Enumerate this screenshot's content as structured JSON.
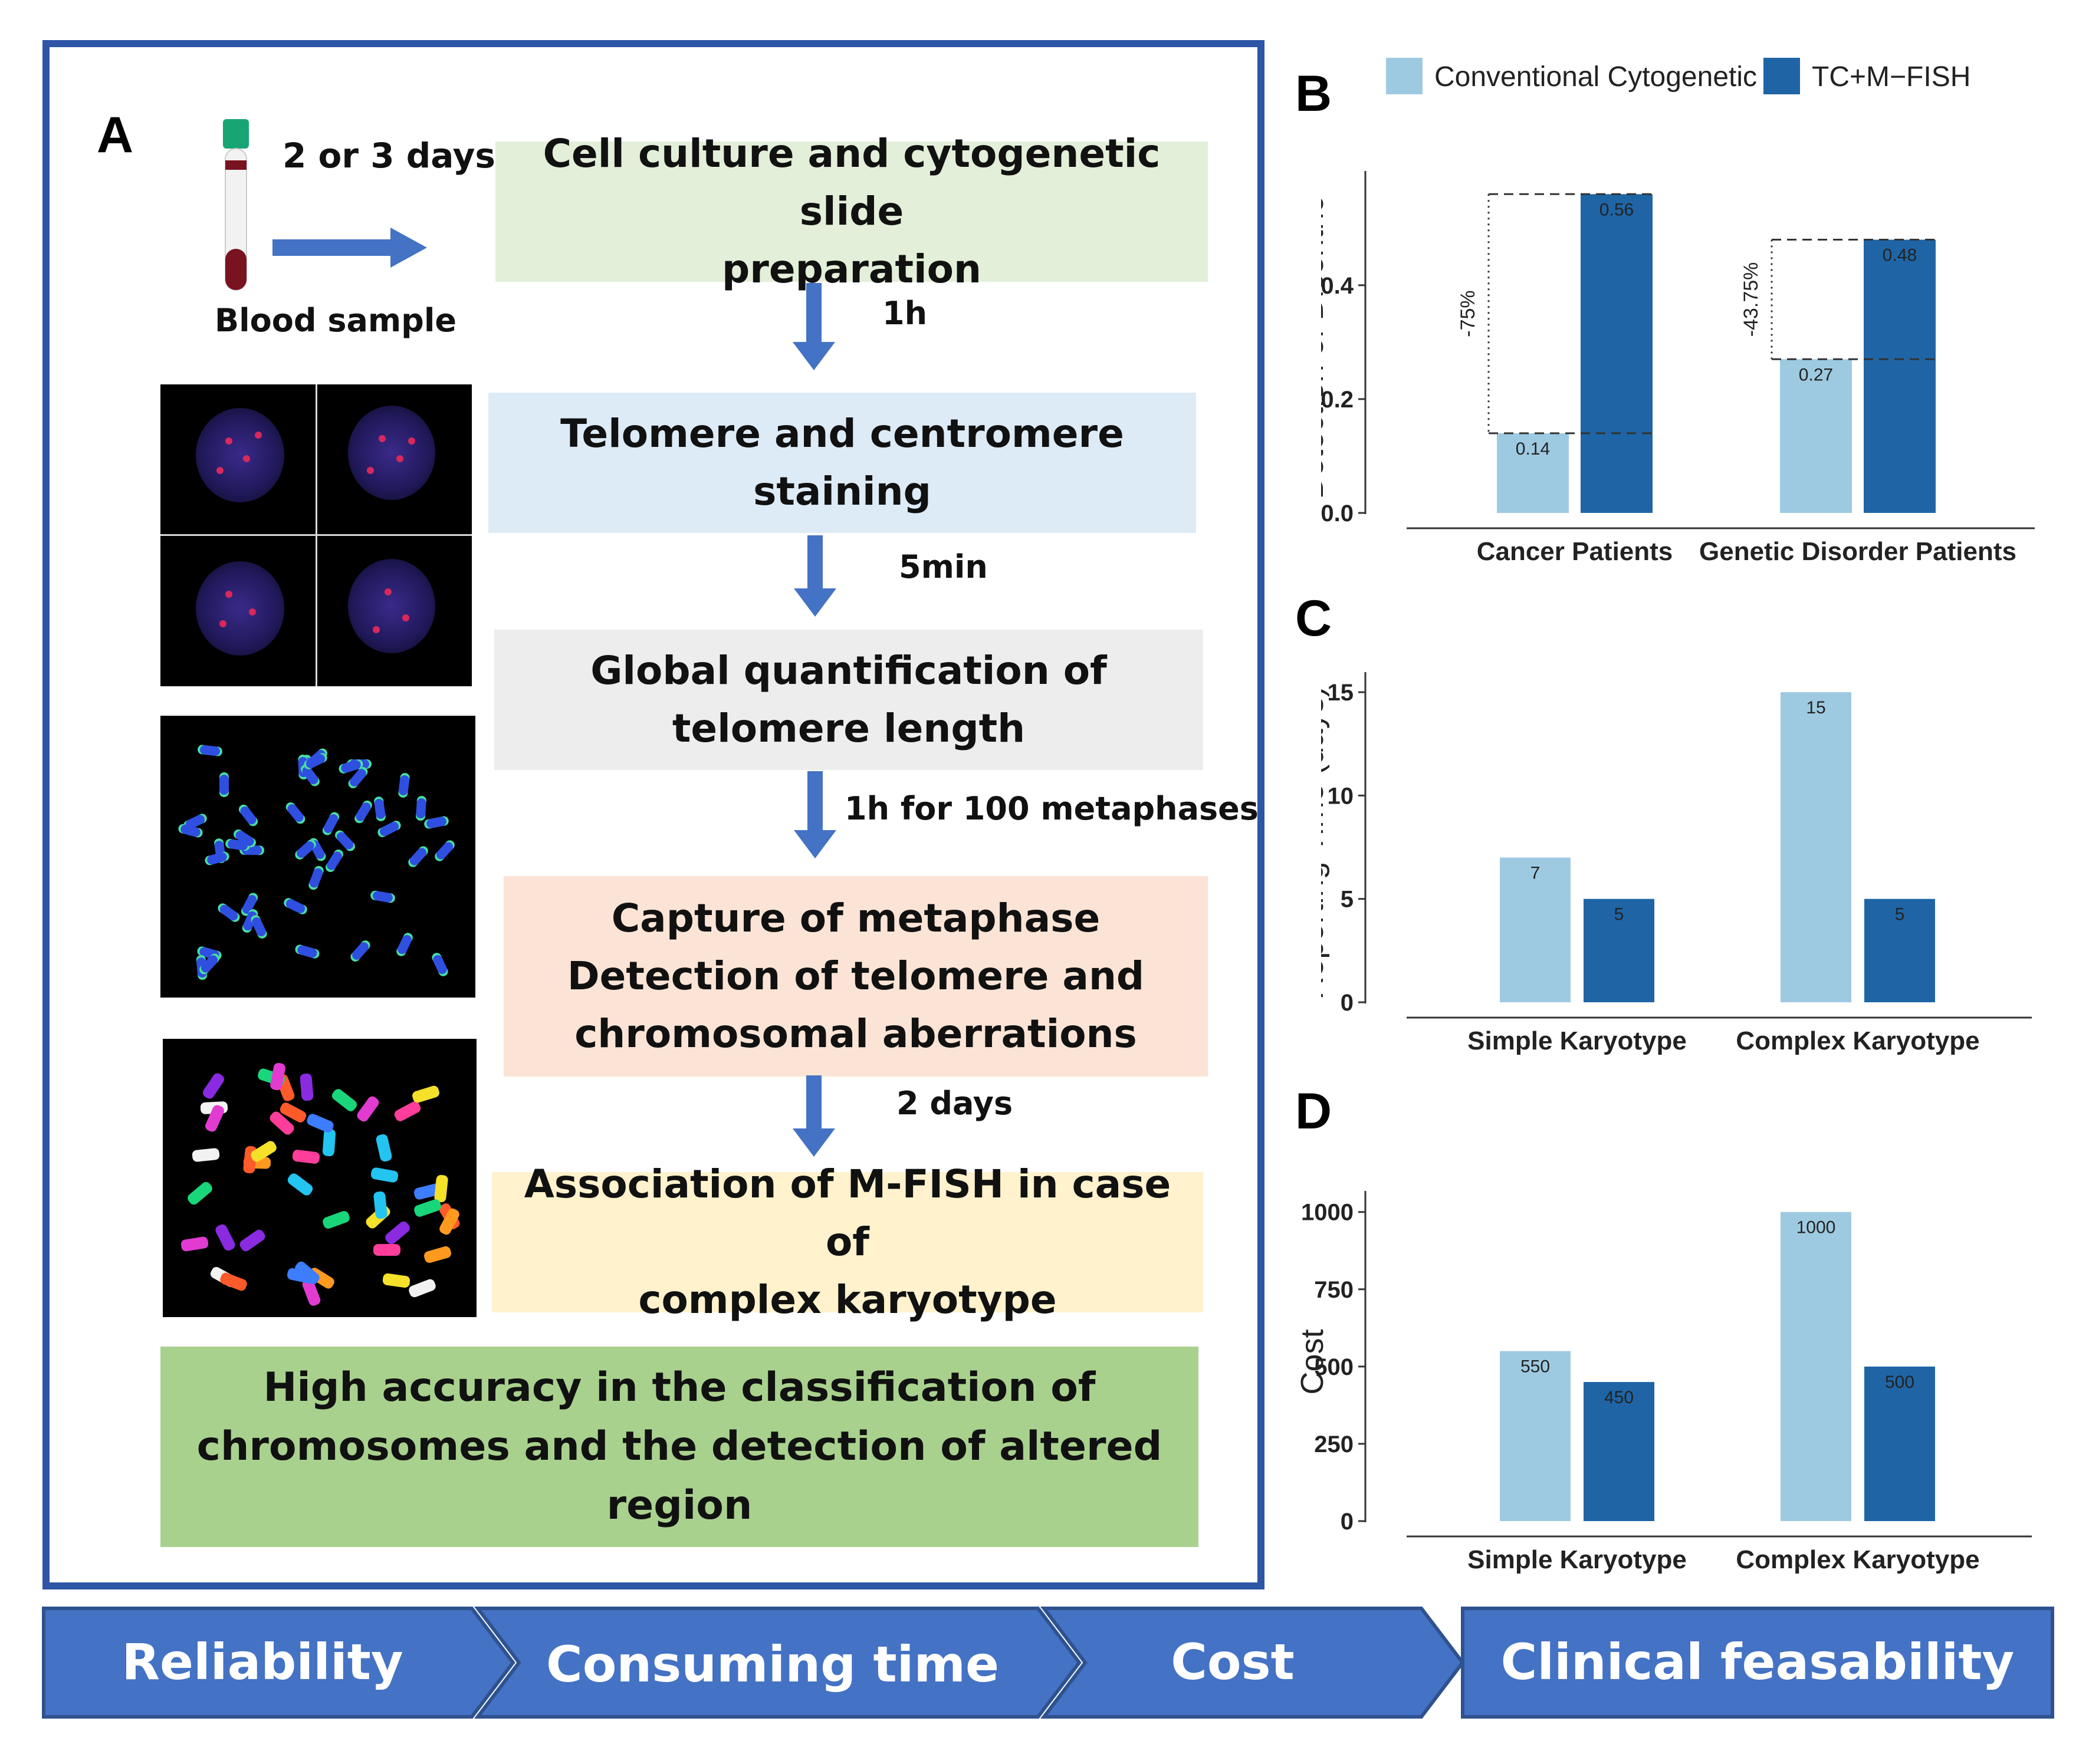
{
  "panel_a": {
    "letter": "A",
    "blood_label": "Blood sample",
    "transfer_time": "2 or 3 days",
    "steps": [
      {
        "lines": [
          "Cell culture and cytogenetic slide",
          "preparation"
        ],
        "bg": "#E3EFD9"
      },
      {
        "lines": [
          "Telomere and centromere",
          "staining"
        ],
        "bg": "#DDEBF7"
      },
      {
        "lines": [
          "Global quantification of",
          "telomere length"
        ],
        "bg": "#EDEDED"
      },
      {
        "lines": [
          "Capture of metaphase",
          "Detection of telomere and",
          "chromosomal aberrations"
        ],
        "bg": "#FBE4D5"
      },
      {
        "lines": [
          "Association of M-FISH in case of",
          "complex karyotype"
        ],
        "bg": "#FFF2CC"
      }
    ],
    "durations": [
      "1h",
      "5min",
      "1h for 100 metaphases",
      "2 days"
    ],
    "conclusion": [
      "High accuracy in the classification of",
      "chromosomes and the detection of altered",
      "region"
    ],
    "conclusion_bg": "#A9D18E"
  },
  "legend": {
    "items": [
      {
        "label": "Conventional Cytogenetic",
        "color": "#9ECAE1"
      },
      {
        "label": "TC+M−FISH",
        "color": "#1F65A6"
      }
    ]
  },
  "chart_data": [
    {
      "panel": "B",
      "type": "bar",
      "categories": [
        "Cancer Patients",
        "Genetic Disorder Patients"
      ],
      "series": [
        {
          "name": "Conventional Cytogenetic",
          "values": [
            0.14,
            0.27
          ],
          "labels": [
            "0.14",
            "0.27"
          ]
        },
        {
          "name": "TC+M−FISH",
          "values": [
            0.56,
            0.48
          ],
          "labels": [
            "0.56",
            "0.48"
          ]
        }
      ],
      "annotations": [
        "-75%",
        "-43.75%"
      ],
      "ylabel": "Detection of Dicentric",
      "yticks": [
        0.0,
        0.2,
        0.4
      ],
      "ytick_labels": [
        "0.0",
        "0.2",
        "0.4"
      ],
      "ylim": [
        0,
        0.58
      ]
    },
    {
      "panel": "C",
      "type": "bar",
      "categories": [
        "Simple Karyotype",
        "Complex Karyotype"
      ],
      "series": [
        {
          "name": "Conventional Cytogenetic",
          "values": [
            7,
            15
          ],
          "labels": [
            "7",
            "15"
          ]
        },
        {
          "name": "TC+M−FISH",
          "values": [
            5,
            5
          ],
          "labels": [
            "5",
            "5"
          ]
        }
      ],
      "ylabel": "Reporting Time (days)",
      "yticks": [
        0,
        5,
        10,
        15
      ],
      "ytick_labels": [
        "0",
        "5",
        "10",
        "15"
      ],
      "ylim": [
        0,
        15.4
      ]
    },
    {
      "panel": "D",
      "type": "bar",
      "categories": [
        "Simple Karyotype",
        "Complex Karyotype"
      ],
      "series": [
        {
          "name": "Conventional Cytogenetic",
          "values": [
            550,
            1000
          ],
          "labels": [
            "550",
            "1000"
          ]
        },
        {
          "name": "TC+M−FISH",
          "values": [
            450,
            500
          ],
          "labels": [
            "450",
            "500"
          ]
        }
      ],
      "ylabel": "Cost",
      "yticks": [
        0,
        250,
        500,
        750,
        1000
      ],
      "ytick_labels": [
        "0",
        "250",
        "500",
        "750",
        "1000"
      ],
      "ylim": [
        0,
        1030
      ]
    }
  ],
  "bottom_arrows": [
    "Reliability",
    "Consuming time",
    "Cost",
    "Clinical feasability"
  ],
  "colors": {
    "frame": "#2E55A6",
    "arrow": "#4472C4",
    "arrow_outline": "#2F528F",
    "down_arrow": "#4472C4"
  }
}
